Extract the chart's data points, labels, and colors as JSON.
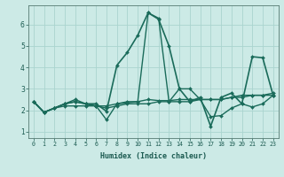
{
  "xlabel": "Humidex (Indice chaleur)",
  "bg_color": "#cceae6",
  "line_color": "#1a6b5a",
  "grid_color": "#aad4cf",
  "xlim": [
    -0.5,
    23.5
  ],
  "ylim": [
    0.7,
    6.9
  ],
  "xticks": [
    0,
    1,
    2,
    3,
    4,
    5,
    6,
    7,
    8,
    9,
    10,
    11,
    12,
    13,
    14,
    15,
    16,
    17,
    18,
    19,
    20,
    21,
    22,
    23
  ],
  "yticks": [
    1,
    2,
    3,
    4,
    5,
    6
  ],
  "series": [
    [
      2.4,
      1.9,
      2.1,
      2.3,
      2.4,
      2.3,
      2.2,
      1.55,
      2.3,
      2.35,
      2.4,
      6.55,
      6.3,
      2.4,
      3.0,
      3.0,
      2.5,
      1.7,
      1.75,
      2.1,
      2.3,
      2.15,
      2.3,
      2.7
    ],
    [
      2.4,
      1.9,
      2.1,
      2.3,
      2.5,
      2.3,
      2.2,
      2.2,
      2.3,
      2.4,
      2.4,
      2.5,
      2.45,
      2.45,
      2.5,
      2.5,
      2.5,
      2.5,
      2.5,
      2.6,
      2.7,
      2.7,
      2.7,
      2.7
    ],
    [
      2.4,
      1.9,
      2.1,
      2.2,
      2.2,
      2.2,
      2.2,
      2.1,
      2.2,
      2.3,
      2.3,
      2.3,
      2.4,
      2.4,
      2.4,
      2.4,
      2.5,
      2.5,
      2.5,
      2.6,
      2.6,
      2.7,
      2.7,
      2.8
    ],
    [
      2.4,
      1.9,
      2.1,
      2.3,
      2.4,
      2.3,
      2.3,
      1.95,
      4.1,
      4.7,
      5.5,
      6.55,
      6.25,
      5.0,
      3.0,
      2.4,
      2.6,
      1.25,
      2.6,
      2.8,
      2.3,
      4.5,
      4.45,
      2.7
    ]
  ]
}
